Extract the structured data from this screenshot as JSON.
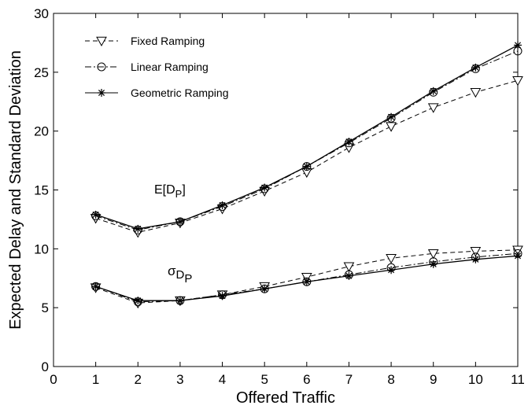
{
  "chart_data": {
    "type": "line",
    "title": "",
    "xlabel": "Offered Traffic",
    "ylabel": "Expected Delay and Standard Deviation",
    "xlim": [
      0,
      11
    ],
    "ylim": [
      0,
      30
    ],
    "xticks": [
      0,
      1,
      2,
      3,
      4,
      5,
      6,
      7,
      8,
      9,
      10,
      11
    ],
    "yticks": [
      0,
      5,
      10,
      15,
      20,
      25,
      30
    ],
    "grid": false,
    "legend_position": "top-left",
    "x": [
      1,
      2,
      3,
      4,
      5,
      6,
      7,
      8,
      9,
      10,
      11
    ],
    "series": [
      {
        "name": "Fixed Ramping",
        "group": "mean",
        "marker": "triangle-down",
        "line": "dashed",
        "values": [
          12.6,
          11.4,
          12.2,
          13.4,
          14.9,
          16.5,
          18.6,
          20.4,
          22.0,
          23.3,
          24.3
        ]
      },
      {
        "name": "Linear Ramping",
        "group": "mean",
        "marker": "circle",
        "line": "dashdot",
        "values": [
          12.8,
          11.6,
          12.3,
          13.6,
          15.1,
          17.0,
          19.0,
          21.1,
          23.3,
          25.3,
          26.8
        ]
      },
      {
        "name": "Geometric Ramping",
        "group": "mean",
        "marker": "star",
        "line": "solid",
        "values": [
          12.9,
          11.7,
          12.3,
          13.7,
          15.2,
          17.0,
          19.1,
          21.2,
          23.4,
          25.4,
          27.3
        ]
      },
      {
        "name": "Fixed Ramping",
        "group": "std",
        "marker": "triangle-down",
        "line": "dashed",
        "values": [
          6.7,
          5.4,
          5.6,
          6.1,
          6.8,
          7.6,
          8.5,
          9.2,
          9.6,
          9.8,
          9.9
        ]
      },
      {
        "name": "Linear Ramping",
        "group": "std",
        "marker": "circle",
        "line": "dashdot",
        "values": [
          6.8,
          5.5,
          5.6,
          6.1,
          6.6,
          7.2,
          7.8,
          8.4,
          8.9,
          9.3,
          9.6
        ]
      },
      {
        "name": "Geometric Ramping",
        "group": "std",
        "marker": "star",
        "line": "solid",
        "values": [
          6.8,
          5.6,
          5.6,
          6.0,
          6.6,
          7.2,
          7.7,
          8.2,
          8.7,
          9.1,
          9.4
        ]
      }
    ],
    "legend": [
      {
        "label": "Fixed Ramping",
        "marker": "triangle-down",
        "line": "dashed"
      },
      {
        "label": "Linear Ramping",
        "marker": "circle",
        "line": "dashdot"
      },
      {
        "label": "Geometric Ramping",
        "marker": "star",
        "line": "solid"
      }
    ],
    "annotations": [
      {
        "text": "E[D",
        "sub": "P",
        "suffix": "]",
        "at_x": 4.5,
        "at_y": 15
      },
      {
        "text": "σ",
        "sub": "D",
        "subsub": "P",
        "at_x": 4.6,
        "at_y": 8
      }
    ]
  }
}
